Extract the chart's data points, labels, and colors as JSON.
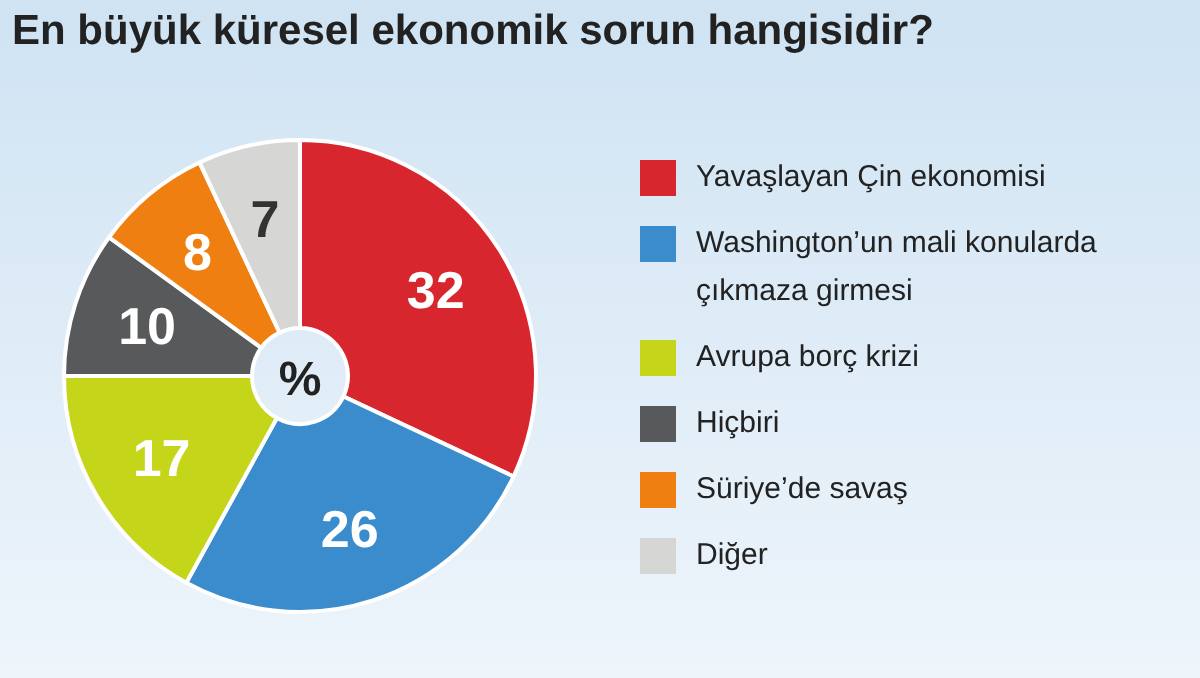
{
  "chart_data": {
    "type": "donut",
    "title": "En büyük küresel ekonomik sorun hangisidir?",
    "categories": [
      "Yavaşlayan Çin ekonomisi",
      "Washington’un mali konularda çıkmaza girmesi",
      "Avrupa borç krizi",
      "Hiçbiri",
      "Süriye’de savaş",
      "Diğer"
    ],
    "values": [
      32,
      26,
      17,
      10,
      8,
      7
    ],
    "colors": [
      "#d7262e",
      "#3b8ccd",
      "#c5d51a",
      "#58595b",
      "#f07f12",
      "#d6d6d4"
    ],
    "data_labels": true,
    "legend": "right",
    "annotations": [
      "%"
    ]
  }
}
